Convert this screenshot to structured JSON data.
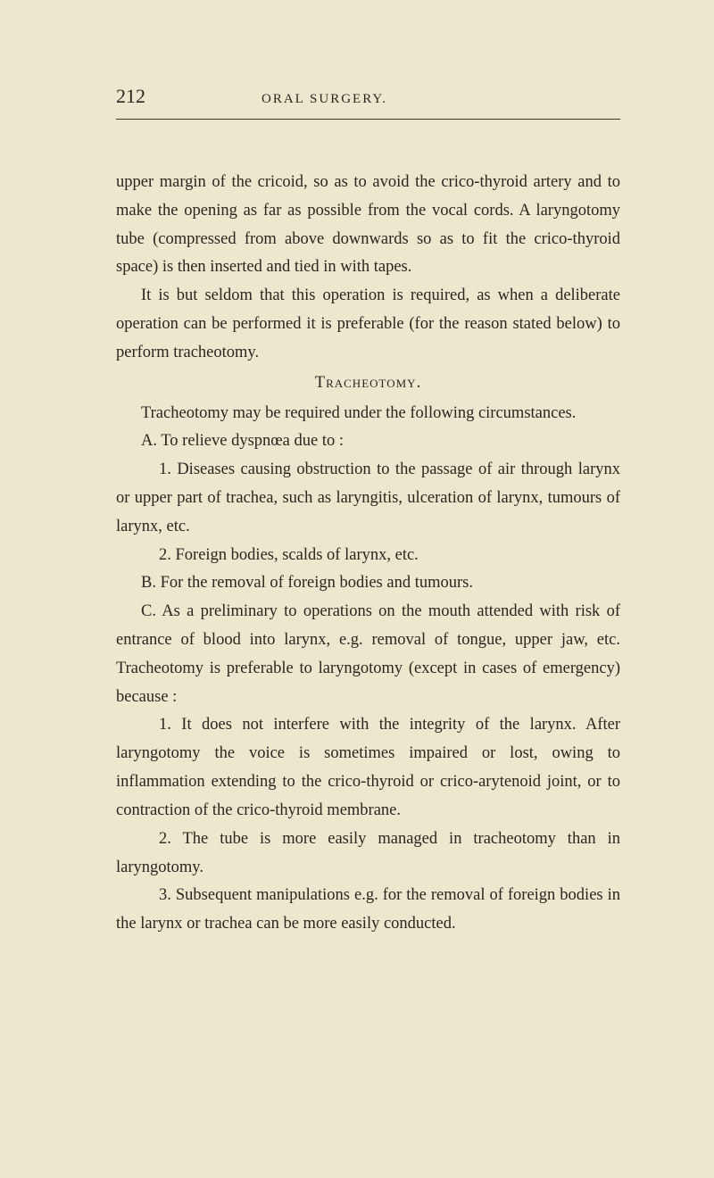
{
  "page_number": "212",
  "running_head": "ORAL SURGERY.",
  "paragraphs": {
    "p1": "upper margin of the cricoid, so as to avoid the crico-thyroid artery and to make the opening as far as possible from the vocal cords. A laryngotomy tube (compressed from above downwards so as to fit the crico-thyroid space) is then inserted and tied in with tapes.",
    "p2": "It is but seldom that this operation is required, as when a deliberate operation can be performed it is preferable (for the reason stated below) to perform tracheotomy.",
    "heading": "Tracheotomy.",
    "p3": "Tracheotomy may be required under the following circumstances.",
    "pA": "A. To relieve dyspnœa due to :",
    "pA1": "1. Diseases causing obstruction to the passage of air through larynx or upper part of trachea, such as laryngitis, ulceration of larynx, tumours of larynx, etc.",
    "pA2": "2. Foreign bodies, scalds of larynx, etc.",
    "pB": "B. For the removal of foreign bodies and tumours.",
    "pC": "C. As a preliminary to operations on the mouth attended with risk of entrance of blood into larynx, e.g. removal of tongue, upper jaw, etc. Tracheotomy is preferable to laryngotomy (except in cases of emergency) because :",
    "pC1": "1. It does not interfere with the integrity of the larynx. After laryngotomy the voice is sometimes impaired or lost, owing to inflammation extending to the crico-thyroid or crico-arytenoid joint, or to contraction of the crico-thyroid membrane.",
    "pC2": "2. The tube is more easily managed in tracheotomy than in laryngotomy.",
    "pC3": "3. Subsequent manipulations e.g. for the removal of foreign bodies in the larynx or trachea can be more easily conducted."
  },
  "colors": {
    "background": "#ede7cd",
    "text": "#2a2620",
    "rule": "#3a3428"
  },
  "typography": {
    "body_fontsize": 18.5,
    "line_height": 1.72,
    "page_num_fontsize": 22,
    "running_head_fontsize": 15
  }
}
